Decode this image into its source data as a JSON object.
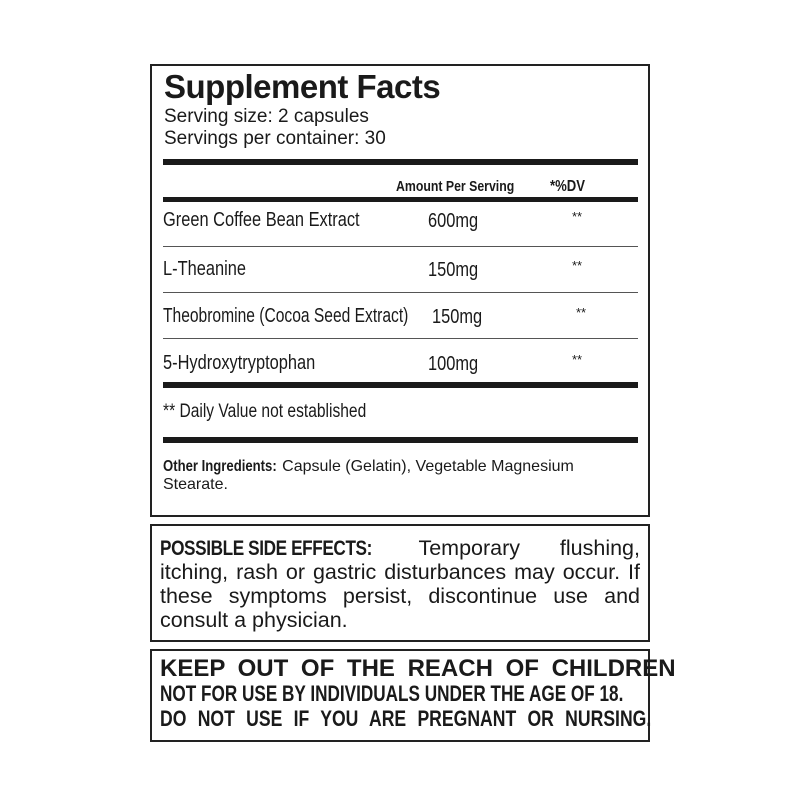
{
  "facts": {
    "title": "Supplement Facts",
    "serving_size": "Serving size: 2 capsules",
    "servings_per_container": "Servings per container: 30",
    "header_amount": "Amount Per Serving",
    "header_dv": "*%DV",
    "rows": [
      {
        "name": "Green Coffee Bean Extract",
        "amount": "600mg",
        "dv": "**"
      },
      {
        "name": "L-Theanine",
        "amount": "150mg",
        "dv": "**"
      },
      {
        "name": "Theobromine (Cocoa Seed Extract)",
        "amount": "150mg",
        "dv": "**"
      },
      {
        "name": "5-Hydroxytryptophan",
        "amount": "100mg",
        "dv": "**"
      }
    ],
    "footnote": "** Daily Value not established",
    "other_label": "Other Ingredients:",
    "other_text": " Capsule (Gelatin), Vegetable Magnesium Stearate."
  },
  "side_effects": {
    "label": "POSSIBLE SIDE EFFECTS:",
    "text": " Temporary flushing, itching, rash or gastric disturbances may occur. If these symptoms persist, discontinue use and consult a physician."
  },
  "warnings": {
    "line1": "KEEP OUT OF THE REACH OF CHILDREN",
    "line2": "NOT FOR USE BY INDIVIDUALS UNDER THE AGE OF 18.",
    "line3": "DO NOT USE IF YOU ARE PREGNANT OR NURSING."
  }
}
